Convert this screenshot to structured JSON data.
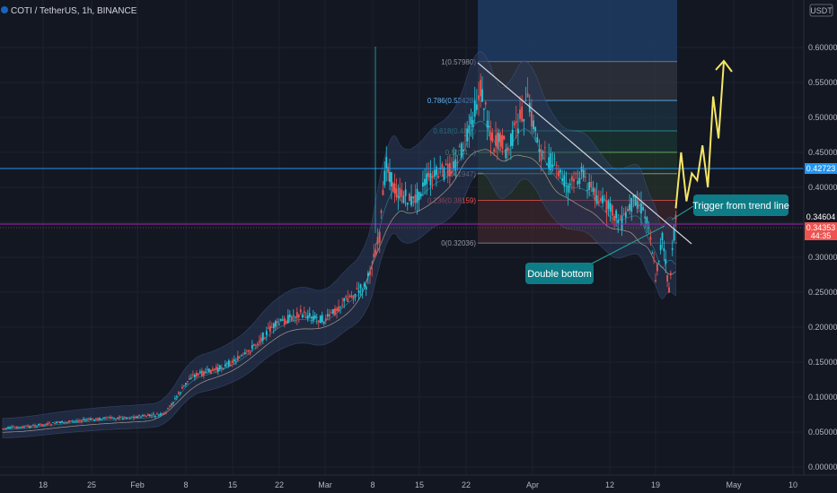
{
  "header": {
    "title": "COTI / TetherUS, 1h, BINANCE",
    "currency": "USDT"
  },
  "price_tags": {
    "level_line": "0.42723",
    "mid_price": "0.34604",
    "last_price": "0.34353",
    "countdown": "44:35"
  },
  "annotations": {
    "double_bottom": "Double bottom",
    "trigger": "Trigger from trend line"
  },
  "fib_levels": [
    {
      "ratio": 1,
      "text": "1(0.57980)",
      "price": 0.5798,
      "color": "#9598a1"
    },
    {
      "ratio": 0.786,
      "text": "0.786(0.52428)",
      "price": 0.52428,
      "color": "#64b5f6"
    },
    {
      "ratio": 0.618,
      "text": "0.618(0.48...)",
      "price": 0.4808,
      "color": "#26a69a"
    },
    {
      "ratio": 0.5,
      "text": "0.5(0.4...)",
      "price": 0.4501,
      "color": "#66bb6a"
    },
    {
      "ratio": 0.382,
      "text": "0.382(0.41947)",
      "price": 0.41947,
      "color": "#9598a1"
    },
    {
      "ratio": 0.236,
      "text": "0.236(0.38159)",
      "price": 0.38159,
      "color": "#ef5350"
    },
    {
      "ratio": 0,
      "text": "0(0.32036)",
      "price": 0.32036,
      "color": "#9598a1"
    }
  ],
  "colors": {
    "background": "#131722",
    "up_candle": "#26c6da",
    "down_candle": "#ef5350",
    "bollinger_fill": "#2a3a5c",
    "projection": "#f5e663",
    "horizontal_line": "#2196f3",
    "purple_line": "#9c27b0",
    "annotation_box": "#0e7c86"
  },
  "chart_data": {
    "type": "line",
    "title": "COTI / TetherUS, 1h, BINANCE",
    "xlabel": "",
    "ylabel": "USDT",
    "ylim": [
      -0.005,
      0.665
    ],
    "y_ticks": [
      "0.00000",
      "0.05000",
      "0.10000",
      "0.15000",
      "0.20000",
      "0.25000",
      "0.30000",
      "0.35000",
      "0.40000",
      "0.45000",
      "0.50000",
      "0.55000",
      "0.60000"
    ],
    "x_ticks": [
      "18",
      "25",
      "Feb",
      "8",
      "15",
      "22",
      "Mar",
      "8",
      "15",
      "22",
      "Apr",
      "12",
      "19",
      "May",
      "10"
    ],
    "grid": true,
    "series": [
      {
        "role": "price",
        "x": [
          "Jan 12",
          "Jan 16",
          "Jan 20",
          "Jan 24",
          "Jan 28",
          "Feb 1",
          "Feb 5",
          "Feb 9",
          "Feb 13",
          "Feb 17",
          "Feb 21",
          "Feb 25",
          "Mar 1",
          "Mar 4",
          "Mar 7",
          "Mar 9",
          "Mar 10",
          "Mar 11",
          "Mar 12",
          "Mar 14",
          "Mar 16",
          "Mar 18",
          "Mar 20",
          "Mar 22",
          "Mar 24",
          "Mar 25",
          "Mar 26",
          "Mar 27",
          "Mar 28",
          "Mar 29",
          "Mar 31",
          "Apr 2",
          "Apr 4",
          "Apr 6",
          "Apr 8",
          "Apr 10",
          "Apr 12",
          "Apr 14",
          "Apr 16",
          "Apr 18",
          "Apr 19",
          "Apr 20",
          "Apr 21",
          "Apr 22"
        ],
        "values": [
          0.055,
          0.058,
          0.063,
          0.067,
          0.07,
          0.072,
          0.075,
          0.13,
          0.14,
          0.16,
          0.2,
          0.22,
          0.21,
          0.24,
          0.26,
          0.33,
          0.44,
          0.4,
          0.39,
          0.38,
          0.41,
          0.42,
          0.43,
          0.47,
          0.54,
          0.5,
          0.46,
          0.47,
          0.45,
          0.48,
          0.52,
          0.45,
          0.43,
          0.4,
          0.42,
          0.39,
          0.37,
          0.35,
          0.385,
          0.35,
          0.27,
          0.33,
          0.25,
          0.36
        ]
      },
      {
        "role": "projection",
        "x": [
          "Apr 22",
          "Apr 23",
          "Apr 24",
          "Apr 25",
          "Apr 26",
          "Apr 27",
          "Apr 28",
          "Apr 29",
          "Apr 30",
          "May 1"
        ],
        "values": [
          0.37,
          0.45,
          0.38,
          0.42,
          0.41,
          0.46,
          0.4,
          0.53,
          0.47,
          0.58
        ]
      }
    ]
  }
}
